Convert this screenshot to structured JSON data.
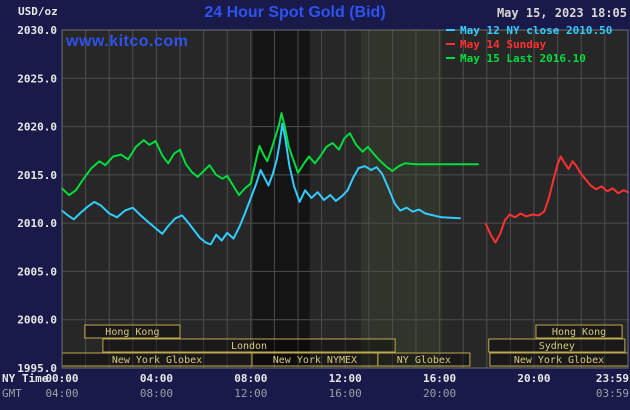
{
  "header": {
    "usd_label": "USD/oz",
    "title": "24 Hour Spot Gold (Bid)",
    "datetime": "May 15, 2023 18:05",
    "watermark": "www.kitco.com"
  },
  "legend": [
    {
      "label": "May 12 NY close 2010.50",
      "color": "#33ccff"
    },
    {
      "label": "May 14 Sunday",
      "color": "#ff3030"
    },
    {
      "label": "May 15 Last 2016.10",
      "color": "#00dd3c"
    }
  ],
  "axes": {
    "ny_time_label": "NY Time",
    "gmt_label": "GMT",
    "y_ticks": [
      {
        "value": 2030,
        "label": "2030.0"
      },
      {
        "value": 2025,
        "label": "2025.0"
      },
      {
        "value": 2020,
        "label": "2020.0"
      },
      {
        "value": 2015,
        "label": "2015.0"
      },
      {
        "value": 2010,
        "label": "2010.0"
      },
      {
        "value": 2005,
        "label": "2005.0"
      },
      {
        "value": 2000,
        "label": "2000.0"
      },
      {
        "value": 1995,
        "label": "1995.0"
      }
    ],
    "x_ticks_ny": [
      {
        "min": 0,
        "label": "00:00"
      },
      {
        "min": 240,
        "label": "04:00"
      },
      {
        "min": 480,
        "label": "08:00"
      },
      {
        "min": 720,
        "label": "12:00"
      },
      {
        "min": 960,
        "label": "16:00"
      },
      {
        "min": 1200,
        "label": "20:00"
      },
      {
        "min": 1439,
        "label": "23:59"
      }
    ],
    "x_ticks_gmt": [
      {
        "min": 0,
        "label": "04:00"
      },
      {
        "min": 240,
        "label": "08:00"
      },
      {
        "min": 480,
        "label": "12:00"
      },
      {
        "min": 720,
        "label": "16:00"
      },
      {
        "min": 960,
        "label": "20:00"
      },
      {
        "min": 1439,
        "label": "03:59"
      }
    ]
  },
  "sessions": [
    {
      "row": 0,
      "start": 58,
      "end": 300,
      "label": "Hong Kong"
    },
    {
      "row": 0,
      "start": 1205,
      "end": 1424,
      "label": "Hong Kong"
    },
    {
      "row": 1,
      "start": 104,
      "end": 847,
      "label": "London"
    },
    {
      "row": 1,
      "start": 1085,
      "end": 1431,
      "label": "Sydney"
    },
    {
      "row": 2,
      "start": 0,
      "end": 483,
      "label": "New York Globex"
    },
    {
      "row": 2,
      "start": 483,
      "end": 803,
      "label": "New York NYMEX"
    },
    {
      "row": 2,
      "start": 803,
      "end": 1037,
      "label": "NY Globex"
    },
    {
      "row": 2,
      "start": 1088,
      "end": 1439,
      "label": "New York Globex"
    }
  ],
  "colors": {
    "page_bg": "#1a1a4a",
    "plot_bg": "#272727",
    "grid": "#4e4e4e",
    "plot_border": "#6f6f6f",
    "band_dark": "#141414",
    "band_light": "#30342a",
    "title_blue": "#2e52f0",
    "axis_text": "#e8e8e8",
    "gmt_text": "#98a0a8",
    "session_border": "#bfa94f",
    "session_text": "#d9c87d",
    "date_text": "#d8d8d8",
    "cyan": "#33ccff",
    "red": "#ff3030",
    "green": "#00dd3c"
  },
  "chart_data": {
    "type": "line",
    "title": "24 Hour Spot Gold (Bid)",
    "xlabel": "NY Time (hours)",
    "ylabel": "USD/oz",
    "ylim": [
      1995,
      2030
    ],
    "xlim": [
      0,
      1439
    ],
    "x_unit": "minutes since 00:00 NY time",
    "grid": true,
    "legend_position": "top-right",
    "bands": [
      {
        "start": 485,
        "end": 630,
        "color": "#141414"
      },
      {
        "start": 760,
        "end": 965,
        "color": "#30342a"
      }
    ],
    "series": [
      {
        "name": "May 12 NY close 2010.50",
        "color": "#33ccff",
        "points": [
          [
            0,
            2011.3
          ],
          [
            15,
            2010.8
          ],
          [
            30,
            2010.4
          ],
          [
            48,
            2011.1
          ],
          [
            65,
            2011.7
          ],
          [
            82,
            2012.2
          ],
          [
            100,
            2011.8
          ],
          [
            120,
            2011.0
          ],
          [
            140,
            2010.6
          ],
          [
            160,
            2011.3
          ],
          [
            180,
            2011.6
          ],
          [
            200,
            2010.8
          ],
          [
            220,
            2010.1
          ],
          [
            240,
            2009.4
          ],
          [
            255,
            2008.9
          ],
          [
            270,
            2009.7
          ],
          [
            288,
            2010.5
          ],
          [
            305,
            2010.8
          ],
          [
            320,
            2010.1
          ],
          [
            335,
            2009.3
          ],
          [
            350,
            2008.5
          ],
          [
            365,
            2008.0
          ],
          [
            378,
            2007.8
          ],
          [
            392,
            2008.8
          ],
          [
            406,
            2008.2
          ],
          [
            420,
            2009.0
          ],
          [
            436,
            2008.4
          ],
          [
            452,
            2009.7
          ],
          [
            466,
            2011.1
          ],
          [
            480,
            2012.6
          ],
          [
            494,
            2014.1
          ],
          [
            505,
            2015.5
          ],
          [
            515,
            2014.7
          ],
          [
            525,
            2013.9
          ],
          [
            536,
            2015.1
          ],
          [
            546,
            2016.6
          ],
          [
            554,
            2018.4
          ],
          [
            560,
            2020.3
          ],
          [
            568,
            2018.7
          ],
          [
            578,
            2016.0
          ],
          [
            590,
            2013.8
          ],
          [
            604,
            2012.2
          ],
          [
            618,
            2013.4
          ],
          [
            634,
            2012.6
          ],
          [
            650,
            2013.2
          ],
          [
            666,
            2012.4
          ],
          [
            682,
            2012.9
          ],
          [
            696,
            2012.3
          ],
          [
            712,
            2012.8
          ],
          [
            726,
            2013.4
          ],
          [
            740,
            2014.7
          ],
          [
            754,
            2015.7
          ],
          [
            770,
            2015.9
          ],
          [
            786,
            2015.5
          ],
          [
            800,
            2015.8
          ],
          [
            814,
            2015.1
          ],
          [
            830,
            2013.6
          ],
          [
            846,
            2012.0
          ],
          [
            860,
            2011.3
          ],
          [
            876,
            2011.6
          ],
          [
            892,
            2011.2
          ],
          [
            908,
            2011.4
          ],
          [
            924,
            2011.0
          ],
          [
            944,
            2010.8
          ],
          [
            965,
            2010.6
          ],
          [
            1012,
            2010.5
          ]
        ]
      },
      {
        "name": "May 14 Sunday",
        "color": "#ff3030",
        "points": [
          [
            1078,
            2009.9
          ],
          [
            1090,
            2008.8
          ],
          [
            1102,
            2008.0
          ],
          [
            1114,
            2008.9
          ],
          [
            1126,
            2010.3
          ],
          [
            1138,
            2010.9
          ],
          [
            1152,
            2010.6
          ],
          [
            1166,
            2011.0
          ],
          [
            1180,
            2010.7
          ],
          [
            1196,
            2010.9
          ],
          [
            1212,
            2010.8
          ],
          [
            1226,
            2011.2
          ],
          [
            1238,
            2012.6
          ],
          [
            1250,
            2014.6
          ],
          [
            1260,
            2016.1
          ],
          [
            1268,
            2016.9
          ],
          [
            1278,
            2016.2
          ],
          [
            1288,
            2015.6
          ],
          [
            1298,
            2016.4
          ],
          [
            1308,
            2015.9
          ],
          [
            1318,
            2015.2
          ],
          [
            1330,
            2014.6
          ],
          [
            1344,
            2013.9
          ],
          [
            1358,
            2013.5
          ],
          [
            1372,
            2013.8
          ],
          [
            1386,
            2013.3
          ],
          [
            1400,
            2013.6
          ],
          [
            1414,
            2013.1
          ],
          [
            1428,
            2013.4
          ],
          [
            1439,
            2013.2
          ]
        ]
      },
      {
        "name": "May 15 Last 2016.10",
        "color": "#00dd3c",
        "points": [
          [
            0,
            2013.6
          ],
          [
            18,
            2012.9
          ],
          [
            35,
            2013.4
          ],
          [
            55,
            2014.6
          ],
          [
            75,
            2015.7
          ],
          [
            95,
            2016.4
          ],
          [
            110,
            2016.0
          ],
          [
            130,
            2016.9
          ],
          [
            150,
            2017.1
          ],
          [
            168,
            2016.6
          ],
          [
            188,
            2017.9
          ],
          [
            208,
            2018.6
          ],
          [
            222,
            2018.1
          ],
          [
            238,
            2018.5
          ],
          [
            255,
            2017.0
          ],
          [
            270,
            2016.2
          ],
          [
            285,
            2017.2
          ],
          [
            300,
            2017.6
          ],
          [
            315,
            2016.1
          ],
          [
            330,
            2015.3
          ],
          [
            345,
            2014.8
          ],
          [
            360,
            2015.4
          ],
          [
            375,
            2016.0
          ],
          [
            392,
            2015.0
          ],
          [
            408,
            2014.6
          ],
          [
            420,
            2014.9
          ],
          [
            435,
            2013.9
          ],
          [
            450,
            2012.9
          ],
          [
            465,
            2013.6
          ],
          [
            480,
            2014.1
          ],
          [
            492,
            2016.3
          ],
          [
            502,
            2018.0
          ],
          [
            512,
            2017.1
          ],
          [
            522,
            2016.4
          ],
          [
            532,
            2017.6
          ],
          [
            542,
            2018.9
          ],
          [
            552,
            2020.2
          ],
          [
            558,
            2021.4
          ],
          [
            566,
            2020.1
          ],
          [
            576,
            2018.0
          ],
          [
            586,
            2016.8
          ],
          [
            600,
            2015.2
          ],
          [
            614,
            2016.1
          ],
          [
            628,
            2016.9
          ],
          [
            643,
            2016.2
          ],
          [
            658,
            2017.0
          ],
          [
            672,
            2017.9
          ],
          [
            688,
            2018.3
          ],
          [
            704,
            2017.6
          ],
          [
            718,
            2018.8
          ],
          [
            732,
            2019.3
          ],
          [
            748,
            2018.1
          ],
          [
            764,
            2017.4
          ],
          [
            778,
            2017.9
          ],
          [
            794,
            2017.1
          ],
          [
            810,
            2016.4
          ],
          [
            826,
            2015.8
          ],
          [
            840,
            2015.4
          ],
          [
            856,
            2015.9
          ],
          [
            872,
            2016.2
          ],
          [
            900,
            2016.1
          ],
          [
            940,
            2016.1
          ],
          [
            990,
            2016.1
          ],
          [
            1058,
            2016.1
          ]
        ]
      }
    ]
  }
}
